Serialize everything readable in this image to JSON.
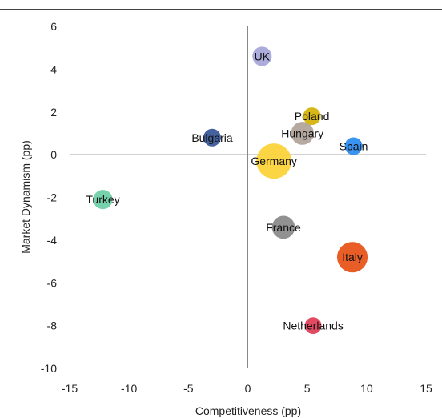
{
  "chart_data": {
    "type": "scatter",
    "title": "",
    "xlabel": "Competitiveness (pp)",
    "ylabel": "Market Dynamism (pp)",
    "xlim": [
      -15,
      15
    ],
    "ylim": [
      -10,
      6
    ],
    "xticks": [
      -15,
      -10,
      -5,
      0,
      5,
      10,
      15
    ],
    "yticks": [
      6,
      4,
      2,
      0,
      -2,
      -4,
      -6,
      -8,
      -10
    ],
    "grid": false,
    "points": [
      {
        "label": "UK",
        "x": 1.2,
        "y": 4.6,
        "size": 1.2,
        "color": "#a7a8d9"
      },
      {
        "label": "Poland",
        "x": 5.4,
        "y": 1.8,
        "size": 1.0,
        "color": "#d5b40c"
      },
      {
        "label": "Hungary",
        "x": 4.6,
        "y": 1.0,
        "size": 1.7,
        "color": "#b1a49b"
      },
      {
        "label": "Bulgaria",
        "x": -3.0,
        "y": 0.8,
        "size": 1.0,
        "color": "#3b5a9a"
      },
      {
        "label": "Spain",
        "x": 8.9,
        "y": 0.4,
        "size": 1.0,
        "color": "#2e8ef0"
      },
      {
        "label": "Germany",
        "x": 2.2,
        "y": -0.3,
        "size": 4.0,
        "color": "#fcd33a"
      },
      {
        "label": "Turkey",
        "x": -12.2,
        "y": -2.1,
        "size": 1.2,
        "color": "#6fd0a6"
      },
      {
        "label": "France",
        "x": 3.0,
        "y": -3.4,
        "size": 1.7,
        "color": "#8b8b8b"
      },
      {
        "label": "Italy",
        "x": 8.8,
        "y": -4.8,
        "size": 3.0,
        "color": "#e8551a"
      },
      {
        "label": "Netherlands",
        "x": 5.5,
        "y": -8.0,
        "size": 0.9,
        "color": "#e0405a"
      }
    ]
  }
}
